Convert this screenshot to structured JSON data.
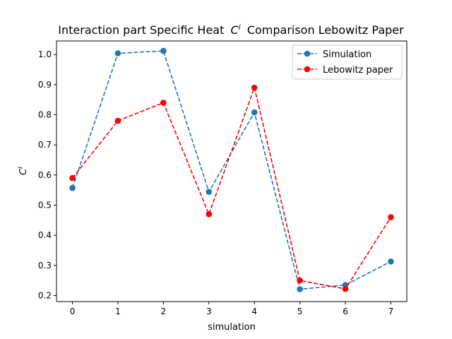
{
  "chart_data": {
    "type": "line",
    "title": "Interaction part Specific Heat",
    "title_symbol": "C",
    "title_symbol_superscript": "i",
    "title_suffix": "Comparison Lebowitz Paper",
    "xlabel": "simulation",
    "ylabel": "C",
    "ylabel_superscript": "i",
    "x": [
      0,
      1,
      2,
      3,
      4,
      5,
      6,
      7
    ],
    "xlim": [
      -0.35,
      7.35
    ],
    "ylim": [
      0.18,
      1.045
    ],
    "xticks": [
      0,
      1,
      2,
      3,
      4,
      5,
      6,
      7
    ],
    "yticks": [
      0.2,
      0.3,
      0.4,
      0.5,
      0.6,
      0.7,
      0.8,
      0.9,
      1.0
    ],
    "ytick_labels": [
      "0.2",
      "0.3",
      "0.4",
      "0.5",
      "0.6",
      "0.7",
      "0.8",
      "0.9",
      "1.0"
    ],
    "grid": false,
    "legend_position": "top-right",
    "series": [
      {
        "name": "Simulation",
        "values": [
          0.557,
          1.004,
          1.012,
          0.544,
          0.808,
          0.221,
          0.235,
          0.313
        ],
        "color": "#1f77b4",
        "linestyle": "dashed",
        "marker": "circle"
      },
      {
        "name": "Lebowitz paper",
        "values": [
          0.59,
          0.78,
          0.84,
          0.47,
          0.89,
          0.25,
          0.222,
          0.46
        ],
        "color": "#ff0000",
        "linestyle": "dashed",
        "marker": "circle"
      }
    ]
  }
}
